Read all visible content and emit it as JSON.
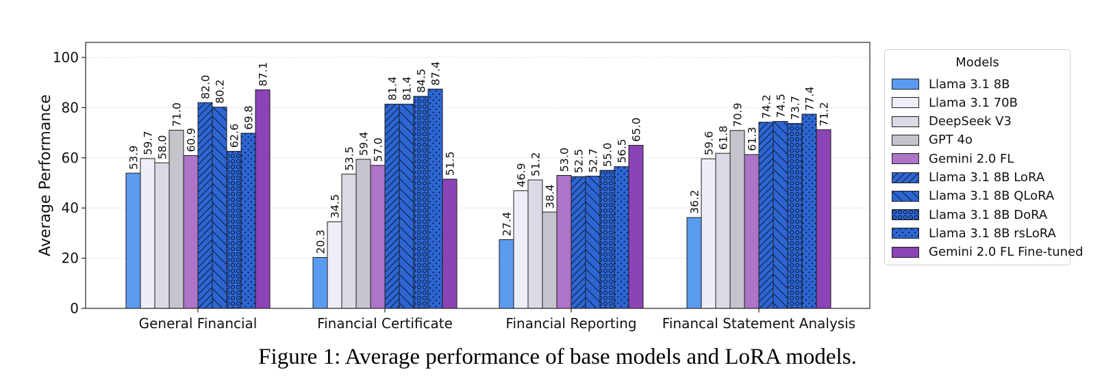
{
  "chart_data": {
    "type": "bar",
    "title": "",
    "xlabel": "",
    "ylabel": "Average Performance",
    "ylim": [
      0,
      106
    ],
    "yticks": [
      0,
      20,
      40,
      60,
      80,
      100
    ],
    "grid": true,
    "legend_title": "Models",
    "legend_position": "outside-right",
    "categories": [
      "General Financial",
      "Financial Certificate",
      "Financial Reporting",
      "Financal Statement Analysis"
    ],
    "series": [
      {
        "name": "Llama 3.1 8B",
        "values": [
          53.9,
          20.3,
          27.4,
          36.2
        ],
        "labels": [
          "53.9",
          "20.3",
          "27.4",
          "36.2"
        ],
        "color": "#5b9bef",
        "pattern": "none"
      },
      {
        "name": "Llama 3.1 70B",
        "values": [
          59.7,
          34.5,
          46.9,
          59.6
        ],
        "labels": [
          "59.7",
          "34.5",
          "46.9",
          "59.6"
        ],
        "color": "#eeeef8",
        "pattern": "none"
      },
      {
        "name": "DeepSeek V3",
        "values": [
          58.0,
          53.5,
          51.2,
          61.8
        ],
        "labels": [
          "58.0",
          "53.5",
          "51.2",
          "61.8"
        ],
        "color": "#dadae4",
        "pattern": "none"
      },
      {
        "name": "GPT 4o",
        "values": [
          71.0,
          59.4,
          38.4,
          70.9
        ],
        "labels": [
          "71.0",
          "59.4",
          "38.4",
          "70.9"
        ],
        "color": "#c4c4cc",
        "pattern": "none"
      },
      {
        "name": "Gemini 2.0 FL",
        "values": [
          60.9,
          57.0,
          53.0,
          61.3
        ],
        "labels": [
          "60.9",
          "57.0",
          "53.0",
          "61.3"
        ],
        "color": "#ad74c8",
        "pattern": "none"
      },
      {
        "name": "Llama 3.1 8B LoRA",
        "values": [
          82.0,
          81.4,
          52.5,
          74.2
        ],
        "labels": [
          "82.0",
          "81.4",
          "52.5",
          "74.2"
        ],
        "color": "#2d66d4",
        "pattern": "forward-diagonal"
      },
      {
        "name": "Llama 3.1 8B QLoRA",
        "values": [
          80.2,
          81.4,
          52.7,
          74.5
        ],
        "labels": [
          "80.2",
          "81.4",
          "52.7",
          "74.5"
        ],
        "color": "#2d66d4",
        "pattern": "back-diagonal"
      },
      {
        "name": "Llama 3.1 8B DoRA",
        "values": [
          62.6,
          84.5,
          55.0,
          73.7
        ],
        "labels": [
          "62.6",
          "84.5",
          "55.0",
          "73.7"
        ],
        "color": "#2d66d4",
        "pattern": "circles"
      },
      {
        "name": "Llama 3.1 8B rsLoRA",
        "values": [
          69.8,
          87.4,
          56.5,
          77.4
        ],
        "labels": [
          "69.8",
          "87.4",
          "56.5",
          "77.4"
        ],
        "color": "#2d66d4",
        "pattern": "dots"
      },
      {
        "name": "Gemini 2.0 FL Fine-tuned",
        "values": [
          87.1,
          51.5,
          65.0,
          71.2
        ],
        "labels": [
          "87.1",
          "51.5",
          "65.0",
          "71.2"
        ],
        "color": "#8b43b6",
        "pattern": "none"
      }
    ]
  },
  "caption": "Figure 1: Average performance of base models and LoRA models."
}
